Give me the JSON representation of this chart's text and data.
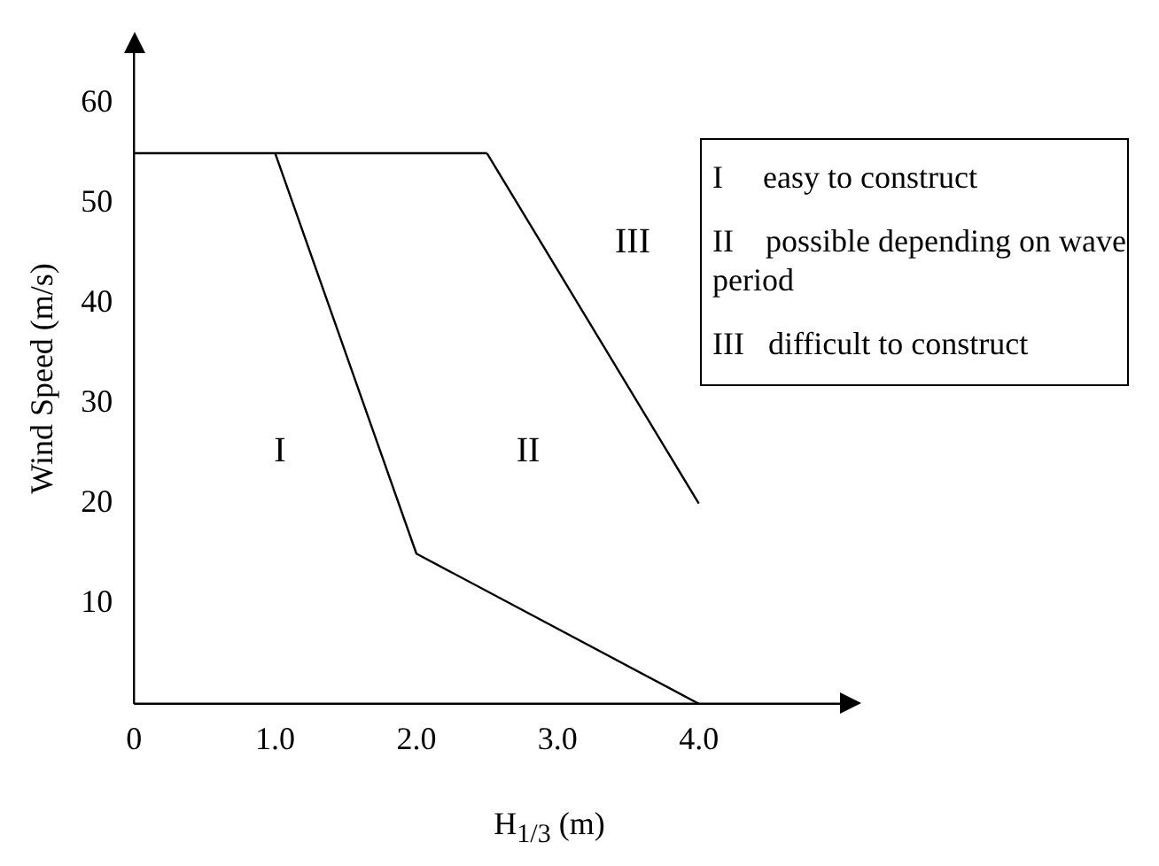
{
  "chart_data": {
    "type": "line",
    "xlabel": "H$_{1/3}$ (m)",
    "ylabel": "Wind Speed (m/s)",
    "series": [
      {
        "color": "#000000",
        "x": [
          0,
          2.5
        ],
        "values": [
          55,
          55
        ]
      },
      {
        "color": "#000000",
        "x": [
          1.0,
          2.0,
          4.0
        ],
        "values": [
          55,
          15,
          0
        ]
      },
      {
        "color": "#000000",
        "x": [
          2.5,
          4.0
        ],
        "values": [
          55,
          20
        ]
      }
    ],
    "xlim": [
      0,
      5
    ],
    "xticks": [
      0,
      {
        "value": 1,
        "label": "1.0"
      },
      {
        "value": 2,
        "label": "2.0"
      },
      {
        "value": 3,
        "label": "3.0"
      },
      {
        "value": 4,
        "label": "4.0"
      }
    ],
    "ylim": [
      0,
      65
    ],
    "yticks": [
      10,
      20,
      30,
      40,
      50,
      60
    ],
    "grid": false,
    "legend": false,
    "marker": "none",
    "line_style": "solid",
    "annotations": [
      "I",
      "II",
      "III",
      "I     easy to construct",
      "II    possible depending on wave period",
      "III   difficult to construct"
    ]
  }
}
